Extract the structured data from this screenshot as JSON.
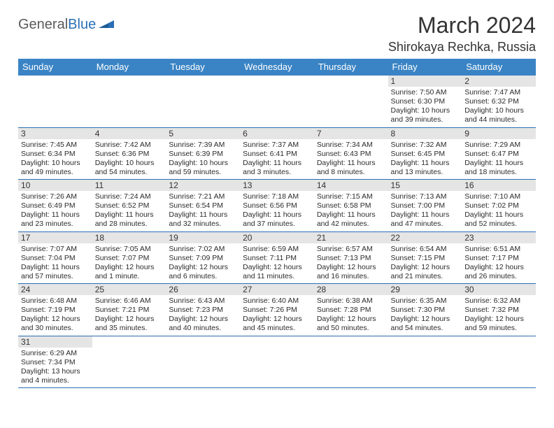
{
  "logo": {
    "word1": "General",
    "word2": "Blue"
  },
  "title": "March 2024",
  "location": "Shirokaya Rechka, Russia",
  "colors": {
    "header_bg": "#3a84c5",
    "header_text": "#ffffff",
    "row_border": "#2a6fb5",
    "daynum_bg": "#e5e5e5",
    "logo_gray": "#5a5a5a",
    "logo_blue": "#2a6fb5",
    "text": "#2b2b2b",
    "page_bg": "#ffffff"
  },
  "weekdays": [
    "Sunday",
    "Monday",
    "Tuesday",
    "Wednesday",
    "Thursday",
    "Friday",
    "Saturday"
  ],
  "weeks": [
    [
      null,
      null,
      null,
      null,
      null,
      {
        "n": "1",
        "sr": "Sunrise: 7:50 AM",
        "ss": "Sunset: 6:30 PM",
        "dl": "Daylight: 10 hours and 39 minutes."
      },
      {
        "n": "2",
        "sr": "Sunrise: 7:47 AM",
        "ss": "Sunset: 6:32 PM",
        "dl": "Daylight: 10 hours and 44 minutes."
      }
    ],
    [
      {
        "n": "3",
        "sr": "Sunrise: 7:45 AM",
        "ss": "Sunset: 6:34 PM",
        "dl": "Daylight: 10 hours and 49 minutes."
      },
      {
        "n": "4",
        "sr": "Sunrise: 7:42 AM",
        "ss": "Sunset: 6:36 PM",
        "dl": "Daylight: 10 hours and 54 minutes."
      },
      {
        "n": "5",
        "sr": "Sunrise: 7:39 AM",
        "ss": "Sunset: 6:39 PM",
        "dl": "Daylight: 10 hours and 59 minutes."
      },
      {
        "n": "6",
        "sr": "Sunrise: 7:37 AM",
        "ss": "Sunset: 6:41 PM",
        "dl": "Daylight: 11 hours and 3 minutes."
      },
      {
        "n": "7",
        "sr": "Sunrise: 7:34 AM",
        "ss": "Sunset: 6:43 PM",
        "dl": "Daylight: 11 hours and 8 minutes."
      },
      {
        "n": "8",
        "sr": "Sunrise: 7:32 AM",
        "ss": "Sunset: 6:45 PM",
        "dl": "Daylight: 11 hours and 13 minutes."
      },
      {
        "n": "9",
        "sr": "Sunrise: 7:29 AM",
        "ss": "Sunset: 6:47 PM",
        "dl": "Daylight: 11 hours and 18 minutes."
      }
    ],
    [
      {
        "n": "10",
        "sr": "Sunrise: 7:26 AM",
        "ss": "Sunset: 6:49 PM",
        "dl": "Daylight: 11 hours and 23 minutes."
      },
      {
        "n": "11",
        "sr": "Sunrise: 7:24 AM",
        "ss": "Sunset: 6:52 PM",
        "dl": "Daylight: 11 hours and 28 minutes."
      },
      {
        "n": "12",
        "sr": "Sunrise: 7:21 AM",
        "ss": "Sunset: 6:54 PM",
        "dl": "Daylight: 11 hours and 32 minutes."
      },
      {
        "n": "13",
        "sr": "Sunrise: 7:18 AM",
        "ss": "Sunset: 6:56 PM",
        "dl": "Daylight: 11 hours and 37 minutes."
      },
      {
        "n": "14",
        "sr": "Sunrise: 7:15 AM",
        "ss": "Sunset: 6:58 PM",
        "dl": "Daylight: 11 hours and 42 minutes."
      },
      {
        "n": "15",
        "sr": "Sunrise: 7:13 AM",
        "ss": "Sunset: 7:00 PM",
        "dl": "Daylight: 11 hours and 47 minutes."
      },
      {
        "n": "16",
        "sr": "Sunrise: 7:10 AM",
        "ss": "Sunset: 7:02 PM",
        "dl": "Daylight: 11 hours and 52 minutes."
      }
    ],
    [
      {
        "n": "17",
        "sr": "Sunrise: 7:07 AM",
        "ss": "Sunset: 7:04 PM",
        "dl": "Daylight: 11 hours and 57 minutes."
      },
      {
        "n": "18",
        "sr": "Sunrise: 7:05 AM",
        "ss": "Sunset: 7:07 PM",
        "dl": "Daylight: 12 hours and 1 minute."
      },
      {
        "n": "19",
        "sr": "Sunrise: 7:02 AM",
        "ss": "Sunset: 7:09 PM",
        "dl": "Daylight: 12 hours and 6 minutes."
      },
      {
        "n": "20",
        "sr": "Sunrise: 6:59 AM",
        "ss": "Sunset: 7:11 PM",
        "dl": "Daylight: 12 hours and 11 minutes."
      },
      {
        "n": "21",
        "sr": "Sunrise: 6:57 AM",
        "ss": "Sunset: 7:13 PM",
        "dl": "Daylight: 12 hours and 16 minutes."
      },
      {
        "n": "22",
        "sr": "Sunrise: 6:54 AM",
        "ss": "Sunset: 7:15 PM",
        "dl": "Daylight: 12 hours and 21 minutes."
      },
      {
        "n": "23",
        "sr": "Sunrise: 6:51 AM",
        "ss": "Sunset: 7:17 PM",
        "dl": "Daylight: 12 hours and 26 minutes."
      }
    ],
    [
      {
        "n": "24",
        "sr": "Sunrise: 6:48 AM",
        "ss": "Sunset: 7:19 PM",
        "dl": "Daylight: 12 hours and 30 minutes."
      },
      {
        "n": "25",
        "sr": "Sunrise: 6:46 AM",
        "ss": "Sunset: 7:21 PM",
        "dl": "Daylight: 12 hours and 35 minutes."
      },
      {
        "n": "26",
        "sr": "Sunrise: 6:43 AM",
        "ss": "Sunset: 7:23 PM",
        "dl": "Daylight: 12 hours and 40 minutes."
      },
      {
        "n": "27",
        "sr": "Sunrise: 6:40 AM",
        "ss": "Sunset: 7:26 PM",
        "dl": "Daylight: 12 hours and 45 minutes."
      },
      {
        "n": "28",
        "sr": "Sunrise: 6:38 AM",
        "ss": "Sunset: 7:28 PM",
        "dl": "Daylight: 12 hours and 50 minutes."
      },
      {
        "n": "29",
        "sr": "Sunrise: 6:35 AM",
        "ss": "Sunset: 7:30 PM",
        "dl": "Daylight: 12 hours and 54 minutes."
      },
      {
        "n": "30",
        "sr": "Sunrise: 6:32 AM",
        "ss": "Sunset: 7:32 PM",
        "dl": "Daylight: 12 hours and 59 minutes."
      }
    ],
    [
      {
        "n": "31",
        "sr": "Sunrise: 6:29 AM",
        "ss": "Sunset: 7:34 PM",
        "dl": "Daylight: 13 hours and 4 minutes."
      },
      null,
      null,
      null,
      null,
      null,
      null
    ]
  ]
}
